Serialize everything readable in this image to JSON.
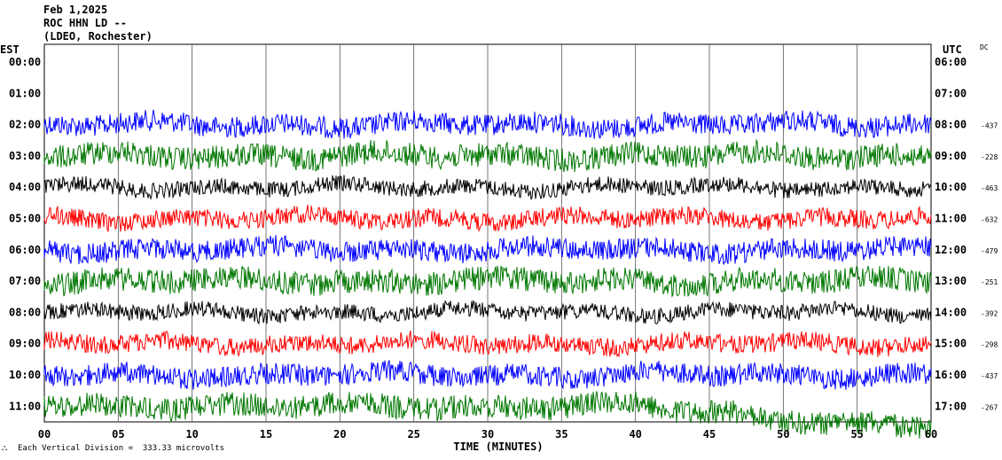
{
  "header": {
    "date": "Feb 1,2025",
    "station": "ROC HHN LD --",
    "network": "(LDEO, Rochester)"
  },
  "footer": {
    "scale_note": "Each Vertical Division =  333.33 microvolts"
  },
  "chart_data": {
    "type": "line",
    "title": "",
    "xlabel": "TIME (MINUTES)",
    "left_axis_label": "EST",
    "right_axis_label": "UTC",
    "dc_label": "DC",
    "xlim": [
      0,
      60
    ],
    "x_ticks": [
      "00",
      "05",
      "10",
      "15",
      "20",
      "25",
      "30",
      "35",
      "40",
      "45",
      "50",
      "55",
      "60"
    ],
    "rows": [
      {
        "est": "00:00",
        "utc": "06:00",
        "dc": "",
        "color": ""
      },
      {
        "est": "01:00",
        "utc": "07:00",
        "dc": "",
        "color": ""
      },
      {
        "est": "02:00",
        "utc": "08:00",
        "dc": "-437",
        "color": "#0000ff"
      },
      {
        "est": "03:00",
        "utc": "09:00",
        "dc": "-228",
        "color": "#007700"
      },
      {
        "est": "04:00",
        "utc": "10:00",
        "dc": "-463",
        "color": "#000000"
      },
      {
        "est": "05:00",
        "utc": "11:00",
        "dc": "-632",
        "color": "#ff0000"
      },
      {
        "est": "06:00",
        "utc": "12:00",
        "dc": "-479",
        "color": "#0000ff"
      },
      {
        "est": "07:00",
        "utc": "13:00",
        "dc": "-251",
        "color": "#007700"
      },
      {
        "est": "08:00",
        "utc": "14:00",
        "dc": "-392",
        "color": "#000000"
      },
      {
        "est": "09:00",
        "utc": "15:00",
        "dc": "-298",
        "color": "#ff0000"
      },
      {
        "est": "10:00",
        "utc": "16:00",
        "dc": "-437",
        "color": "#0000ff"
      },
      {
        "est": "11:00",
        "utc": "17:00",
        "dc": "-267",
        "color": "#007700"
      }
    ]
  }
}
